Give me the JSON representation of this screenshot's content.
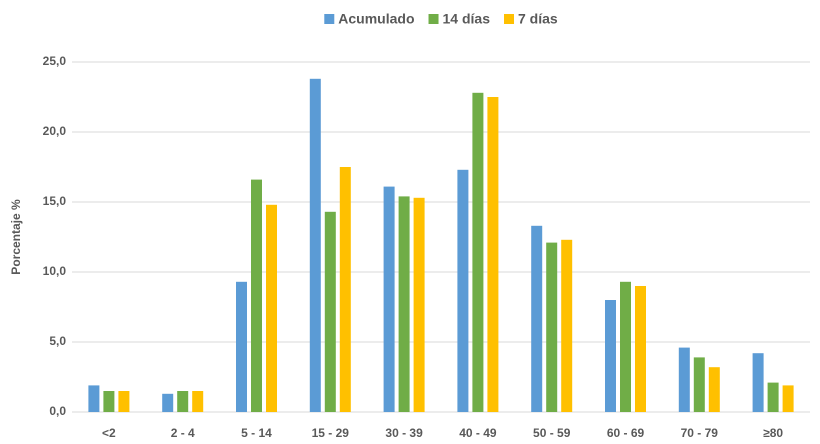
{
  "chart_data": {
    "type": "bar",
    "y_label": "Porcentaje %",
    "categories": [
      "<2",
      "2 - 4",
      "5 - 14",
      "15 - 29",
      "30 - 39",
      "40 - 49",
      "50 - 59",
      "60 - 69",
      "70 - 79",
      "≥80"
    ],
    "series": [
      {
        "name": "Acumulado",
        "color": "#5b9bd5",
        "values": [
          1.9,
          1.3,
          9.3,
          23.8,
          16.1,
          17.3,
          13.3,
          8.0,
          4.6,
          4.2
        ]
      },
      {
        "name": "14 días",
        "color": "#70ad47",
        "values": [
          1.5,
          1.5,
          16.6,
          14.3,
          15.4,
          22.8,
          12.1,
          9.3,
          3.9,
          2.1
        ]
      },
      {
        "name": "7 días",
        "color": "#ffc000",
        "values": [
          1.5,
          1.5,
          14.8,
          17.5,
          15.3,
          22.5,
          12.3,
          9.0,
          3.2,
          1.9
        ]
      }
    ],
    "ylim": [
      0,
      25
    ],
    "yticks": [
      {
        "value": 0,
        "label": "0,0"
      },
      {
        "value": 5,
        "label": "5,0"
      },
      {
        "value": 10,
        "label": "10,0"
      },
      {
        "value": 15,
        "label": "15,0"
      },
      {
        "value": 20,
        "label": "20,0"
      },
      {
        "value": 25,
        "label": "25,0"
      }
    ],
    "grid": true,
    "legend": "top"
  }
}
